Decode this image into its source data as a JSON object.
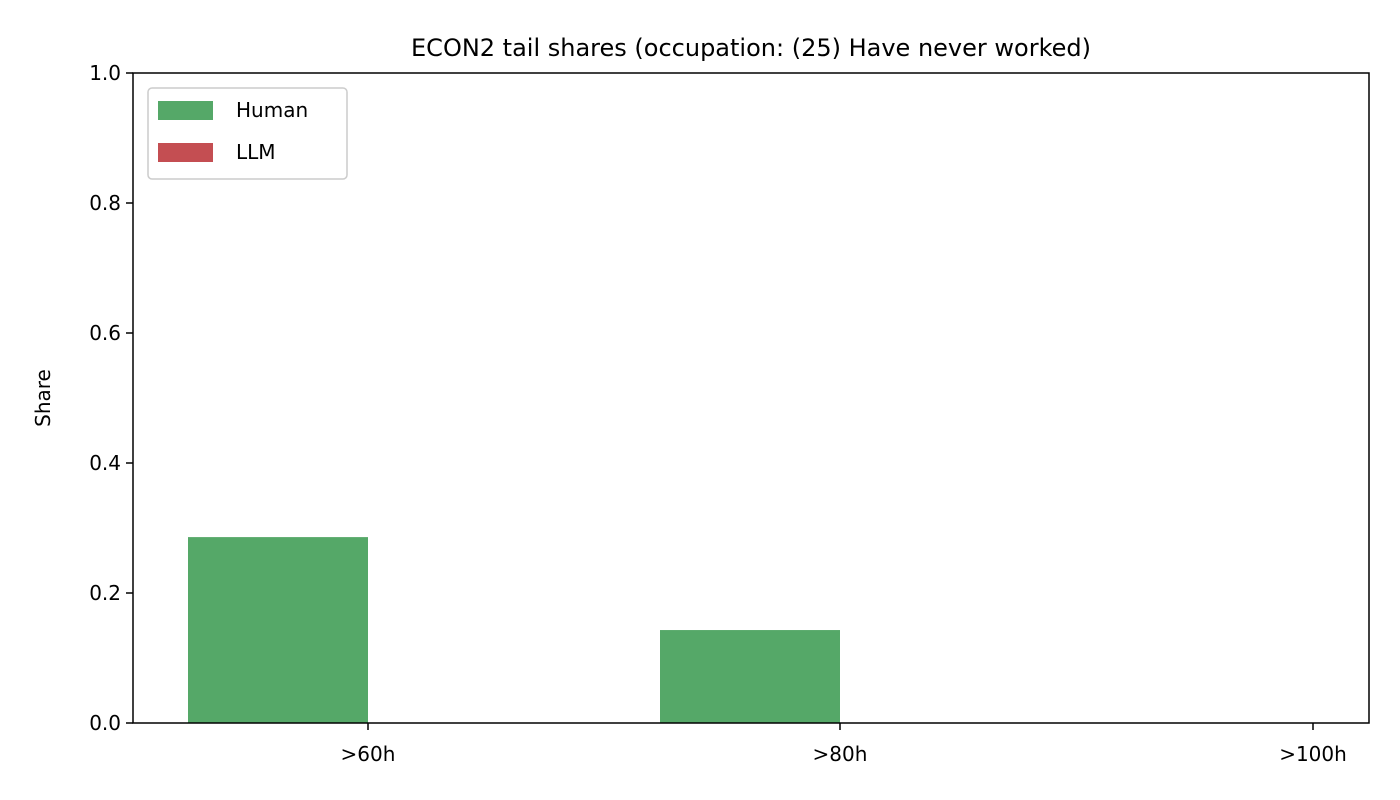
{
  "chart_data": {
    "type": "bar",
    "title": "ECON2 tail shares (occupation: (25) Have never worked)",
    "xlabel": "",
    "ylabel": "Share",
    "categories": [
      ">60h",
      ">80h",
      ">100h"
    ],
    "series": [
      {
        "name": "Human",
        "values": [
          0.286,
          0.143,
          0.0
        ],
        "color": "#55a868"
      },
      {
        "name": "LLM",
        "values": [
          0.0,
          0.0,
          0.0
        ],
        "color": "#c44e52"
      }
    ],
    "ylim": [
      0,
      1.0
    ],
    "yticks": [
      0.0,
      0.2,
      0.4,
      0.6,
      0.8,
      1.0
    ],
    "ytick_labels": [
      "0.0",
      "0.2",
      "0.4",
      "0.6",
      "0.8",
      "1.0"
    ],
    "grid": false,
    "legend_position": "top-left"
  }
}
